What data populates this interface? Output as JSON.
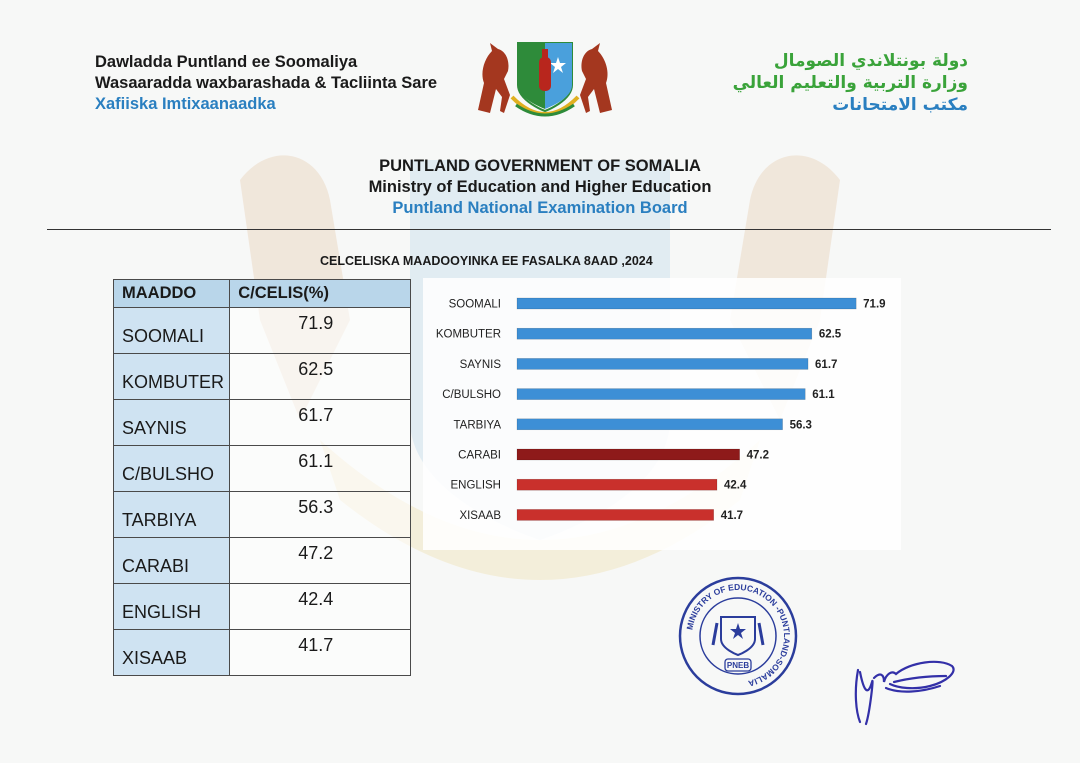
{
  "header_left": {
    "line1": "Dawladda Puntland ee Soomaliya",
    "line2": "Wasaaradda waxbarashada & Tacliinta Sare",
    "line3": "Xafiiska Imtixaanaadka"
  },
  "header_right": {
    "line1": "دولة بونتلاندي الصومال",
    "line2": "وزارة التربية والتعليم العالي",
    "line3": "مكتب الامتحانات"
  },
  "header_center": {
    "line1": "PUNTLAND GOVERNMENT OF SOMALIA",
    "line2": "Ministry of Education and Higher Education",
    "line3": "Puntland National Examination Board"
  },
  "table": {
    "title": "CELCELISKA MAADOOYINKA EE FASALKA 8AAD ,2024",
    "col_subject": "MAADDO",
    "col_average": "C/CELIS(%)",
    "rows": [
      {
        "subject": "SOOMALI",
        "average": "71.9"
      },
      {
        "subject": "KOMBUTER",
        "average": "62.5"
      },
      {
        "subject": "SAYNIS",
        "average": "61.7"
      },
      {
        "subject": "C/BULSHO",
        "average": "61.1"
      },
      {
        "subject": "TARBIYA",
        "average": "56.3"
      },
      {
        "subject": "CARABI",
        "average": "47.2"
      },
      {
        "subject": "ENGLISH",
        "average": "42.4"
      },
      {
        "subject": "XISAAB",
        "average": "41.7"
      }
    ]
  },
  "chart_data": {
    "type": "bar",
    "orientation": "horizontal",
    "categories": [
      "SOOMALI",
      "KOMBUTER",
      "SAYNIS",
      "C/BULSHO",
      "TARBIYA",
      "CARABI",
      "ENGLISH",
      "XISAAB"
    ],
    "values": [
      71.9,
      62.5,
      61.7,
      61.1,
      56.3,
      47.2,
      42.4,
      41.7
    ],
    "data_labels": [
      "71.9",
      "62.5",
      "61.7",
      "61.1",
      "56.3",
      "47.2",
      "42.4",
      "41.7"
    ],
    "bar_colors": [
      "#3d8fd6",
      "#3d8fd6",
      "#3d8fd6",
      "#3d8fd6",
      "#3d8fd6",
      "#8e1a1a",
      "#c9302c",
      "#c9302c"
    ],
    "xlim": [
      0,
      75
    ],
    "grid": false,
    "legend": "none"
  },
  "stamp": {
    "ring_text": "MINISTRY OF EDUCATION -PUNTLAND-SOMALIA",
    "center_text": "PNEB"
  },
  "colors": {
    "header_blue": "#2a7fc0",
    "header_green": "#3aa33a",
    "table_header_bg": "#b9d6ea",
    "table_subject_bg": "#cfe3f2",
    "stamp_blue": "#2b3d9c"
  }
}
